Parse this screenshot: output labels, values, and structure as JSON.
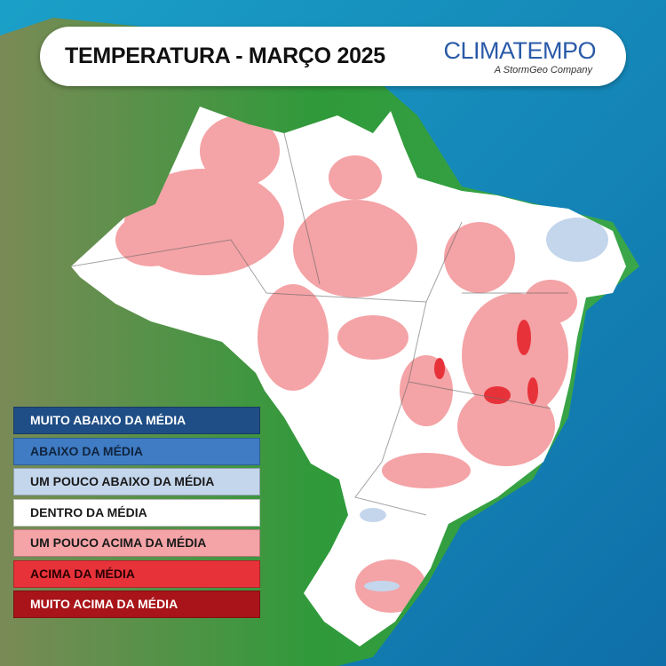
{
  "header": {
    "title": "TEMPERATURA - MARÇO 2025",
    "logo": "CLIMATEMPO",
    "logo_tagline": "A StormGeo Company"
  },
  "legend": {
    "items": [
      {
        "label": "MUITO ABAIXO DA MÉDIA",
        "color": "#1f4e86",
        "text_color": "#ffffff"
      },
      {
        "label": "ABAIXO DA MÉDIA",
        "color": "#3f7cc4",
        "text_color": "#10243f"
      },
      {
        "label": "UM POUCO ABAIXO DA MÉDIA",
        "color": "#c4d6ec",
        "text_color": "#1a1a1a"
      },
      {
        "label": "DENTRO DA MÉDIA",
        "color": "#ffffff",
        "text_color": "#1a1a1a"
      },
      {
        "label": "UM POUCO ACIMA DA MÉDIA",
        "color": "#f4a3a6",
        "text_color": "#1a1a1a"
      },
      {
        "label": "ACIMA DA MÉDIA",
        "color": "#e8323a",
        "text_color": "#2a0000"
      },
      {
        "label": "MUITO ACIMA DA MÉDIA",
        "color": "#a81419",
        "text_color": "#ffffff"
      }
    ]
  }
}
